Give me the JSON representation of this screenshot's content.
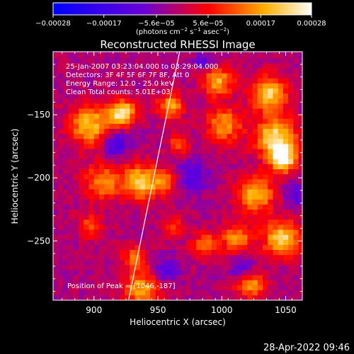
{
  "chart_data": {
    "type": "heatmap",
    "title": "Reconstructed RHESSI Image",
    "xlabel": "Heliocentric X (arcsec)",
    "ylabel": "Heliocentric Y (arcsec)",
    "xlim": [
      868,
      1063
    ],
    "ylim": [
      -297,
      -100
    ],
    "x_ticks": [
      900,
      950,
      1000,
      1050
    ],
    "y_ticks": [
      -150,
      -200,
      -250
    ],
    "x_tick_labels": [
      "900",
      "950",
      "1000",
      "1050"
    ],
    "y_tick_labels": [
      "−150",
      "−200",
      "−250"
    ],
    "colorbar": {
      "range": [
        -0.00028,
        0.00028
      ],
      "ticks": [
        -0.00028,
        -0.00017,
        -5.6e-05,
        5.6e-05,
        0.00017,
        0.00028
      ],
      "tick_labels": [
        "−0.00028",
        "−0.00017",
        "−5.6e−05",
        "5.6e−05",
        "0.00017",
        "0.00028"
      ],
      "unit_parts": [
        "(photons cm",
        "−2",
        " s",
        "−1",
        " asec",
        "−2",
        ")"
      ],
      "colors": [
        "#0000ff",
        "#6a00d8",
        "#ff0000",
        "#ffb000",
        "#ffffff"
      ]
    },
    "annotations": [
      "25-Jan-2007 03:23:04.000 to 03:29:04.000",
      "Detectors: 3F 4F 5F 6F 7F 8F, Att 0",
      "Energy Range: 12.0 - 25.0 keV",
      "Clean    Total counts: 5.01E+03"
    ],
    "peak_label": "Position of Peak = [1046,-187]",
    "peak": [
      1046,
      -187
    ],
    "limb_line": [
      [
        927,
        -297
      ],
      [
        967,
        -100
      ]
    ],
    "blobs": [
      {
        "x": 895,
        "y": -160,
        "w": 16,
        "v": 0.00022
      },
      {
        "x": 920,
        "y": -150,
        "w": 10,
        "v": 0.00028
      },
      {
        "x": 905,
        "y": -205,
        "w": 14,
        "v": 0.00018
      },
      {
        "x": 935,
        "y": -205,
        "w": 14,
        "v": 0.00024
      },
      {
        "x": 958,
        "y": -145,
        "w": 10,
        "v": 0.0002
      },
      {
        "x": 965,
        "y": -175,
        "w": 8,
        "v": 0.00014
      },
      {
        "x": 955,
        "y": -205,
        "w": 10,
        "v": 0.00012
      },
      {
        "x": 995,
        "y": -125,
        "w": 12,
        "v": 0.0002
      },
      {
        "x": 1000,
        "y": -160,
        "w": 14,
        "v": 0.00018
      },
      {
        "x": 1035,
        "y": -135,
        "w": 14,
        "v": 0.00024
      },
      {
        "x": 1040,
        "y": -170,
        "w": 16,
        "v": 0.00026
      },
      {
        "x": 1046,
        "y": -187,
        "w": 10,
        "v": 0.00028
      },
      {
        "x": 1025,
        "y": -215,
        "w": 14,
        "v": 0.00022
      },
      {
        "x": 1045,
        "y": -250,
        "w": 14,
        "v": 0.00024
      },
      {
        "x": 1010,
        "y": -250,
        "w": 12,
        "v": 0.00018
      },
      {
        "x": 985,
        "y": -255,
        "w": 10,
        "v": 0.00016
      },
      {
        "x": 960,
        "y": -240,
        "w": 8,
        "v": 0.00012
      },
      {
        "x": 1020,
        "y": -285,
        "w": 12,
        "v": 0.0002
      },
      {
        "x": 930,
        "y": -265,
        "w": 10,
        "v": 0.00014
      },
      {
        "x": 895,
        "y": -240,
        "w": 10,
        "v": 0.00012
      },
      {
        "x": 935,
        "y": -290,
        "w": 14,
        "v": 0.0002
      },
      {
        "x": 975,
        "y": -200,
        "w": 12,
        "v": -0.00012
      },
      {
        "x": 915,
        "y": -175,
        "w": 10,
        "v": -0.00014
      },
      {
        "x": 985,
        "y": -110,
        "w": 8,
        "v": -0.0001
      },
      {
        "x": 1015,
        "y": -275,
        "w": 10,
        "v": -0.00014
      },
      {
        "x": 955,
        "y": -275,
        "w": 10,
        "v": -0.0001
      },
      {
        "x": 1055,
        "y": -215,
        "w": 8,
        "v": -0.0001
      }
    ]
  },
  "footer": {
    "timestamp": "28-Apr-2022 09:46"
  }
}
